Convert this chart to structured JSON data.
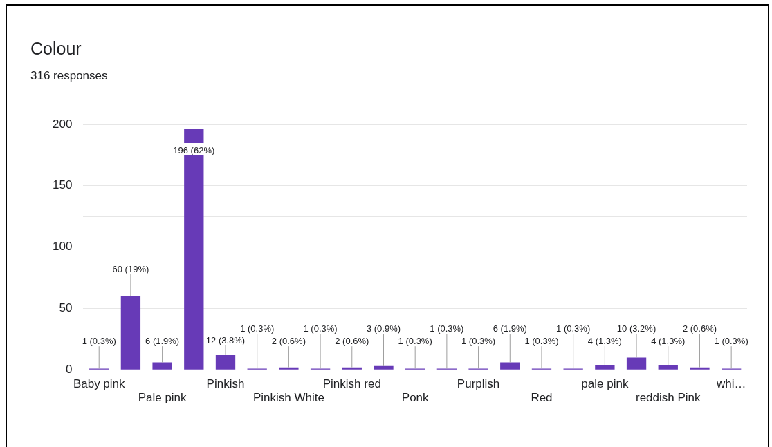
{
  "chart_data": {
    "type": "bar",
    "title": "Colour",
    "subtitle": "316 responses",
    "categories": [
      "Baby pink",
      null,
      "Pale pink",
      null,
      "Pinkish",
      null,
      "Pinkish White",
      null,
      "Pinkish red",
      null,
      "Ponk",
      null,
      "Purplish",
      null,
      "Red",
      null,
      "pale pink",
      null,
      "reddish Pink",
      null,
      "whi…"
    ],
    "values": [
      1,
      60,
      6,
      196,
      12,
      1,
      2,
      1,
      2,
      3,
      1,
      1,
      1,
      6,
      1,
      1,
      4,
      10,
      4,
      2,
      1
    ],
    "value_labels": [
      "1 (0.3%)",
      "60 (19%)",
      "6 (1.9%)",
      "196 (62%)",
      "12 (3.8%)",
      "1 (0.3%)",
      "2 (0.6%)",
      "1 (0.3%)",
      "2 (0.6%)",
      "3 (0.9%)",
      "1 (0.3%)",
      "1 (0.3%)",
      "1 (0.3%)",
      "6 (1.9%)",
      "1 (0.3%)",
      "1 (0.3%)",
      "4 (1.3%)",
      "10 (3.2%)",
      "4 (1.3%)",
      "2 (0.6%)",
      "1 (0.3%)"
    ],
    "color": "#673ab7",
    "ylim": [
      0,
      200
    ],
    "yticks": [
      0,
      {
        "value": 25,
        "label": null
      },
      50,
      {
        "value": 75,
        "label": null
      },
      100,
      {
        "value": 125,
        "label": null
      },
      150,
      {
        "value": 175,
        "label": null
      },
      200
    ],
    "grid": "y",
    "legend": false
  }
}
